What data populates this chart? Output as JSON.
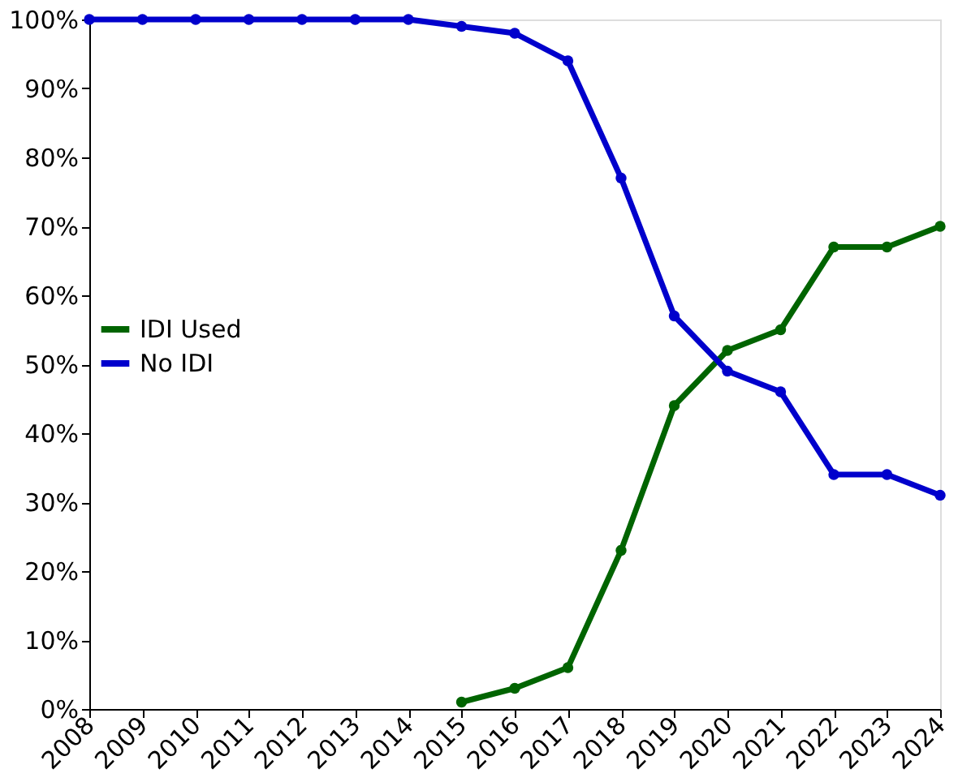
{
  "chart_data": {
    "type": "line",
    "categories": [
      "2008",
      "2009",
      "2010",
      "2011",
      "2012",
      "2013",
      "2014",
      "2015",
      "2016",
      "2017",
      "2018",
      "2019",
      "2020",
      "2021",
      "2022",
      "2023",
      "2024"
    ],
    "series": [
      {
        "name": "IDI Used",
        "color": "#006400",
        "values": [
          null,
          null,
          null,
          null,
          null,
          null,
          null,
          1,
          3,
          6,
          23,
          44,
          52,
          55,
          67,
          67,
          70
        ]
      },
      {
        "name": "No IDI",
        "color": "#0000cc",
        "values": [
          100,
          100,
          100,
          100,
          100,
          100,
          100,
          99,
          98,
          94,
          77,
          57,
          49,
          46,
          34,
          34,
          31
        ]
      }
    ],
    "ylim": [
      0,
      100
    ],
    "yticks": [
      {
        "value": 0,
        "label": "0%"
      },
      {
        "value": 10,
        "label": "10%"
      },
      {
        "value": 20,
        "label": "20%"
      },
      {
        "value": 30,
        "label": "30%"
      },
      {
        "value": 40,
        "label": "40%"
      },
      {
        "value": 50,
        "label": "50%"
      },
      {
        "value": 60,
        "label": "60%"
      },
      {
        "value": 70,
        "label": "70%"
      },
      {
        "value": 80,
        "label": "80%"
      },
      {
        "value": 90,
        "label": "90%"
      },
      {
        "value": 100,
        "label": "100%"
      }
    ],
    "grid": false,
    "legend": "left",
    "marker": "circle",
    "line_style": "solid"
  }
}
